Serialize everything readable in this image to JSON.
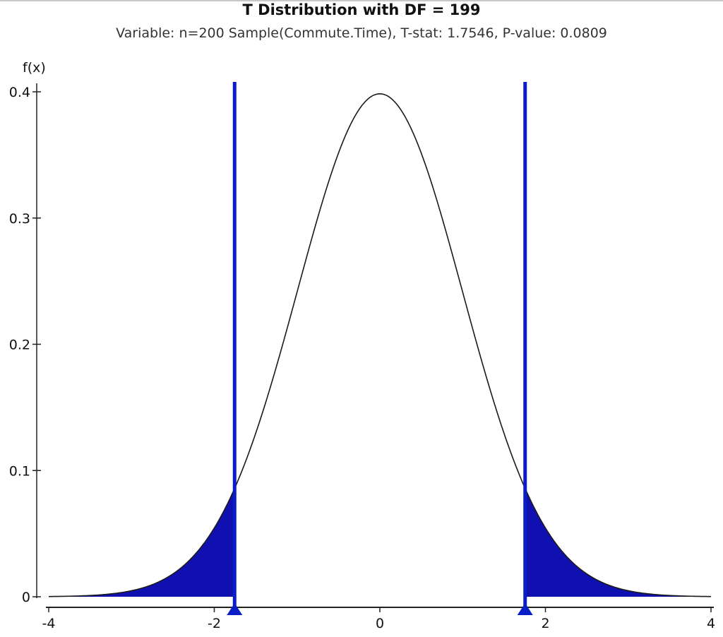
{
  "chart_data": {
    "type": "area",
    "title": "T Distribution with DF = 199",
    "subtitle": "Variable: n=200 Sample(Commute.Time), T-stat: 1.7546, P-value: 0.0809",
    "ylabel": "f(x)",
    "xlabel": "",
    "df": 199,
    "t_stat": 1.7546,
    "p_value": 0.0809,
    "xlim": [
      -4,
      4
    ],
    "ylim": [
      0,
      0.4
    ],
    "x_ticks": [
      -4,
      -2,
      0,
      2,
      4
    ],
    "x_tick_labels": [
      "-4",
      "-2",
      "0",
      "2",
      "4"
    ],
    "y_ticks": [
      0,
      0.1,
      0.2,
      0.3,
      0.4
    ],
    "y_tick_labels": [
      "0",
      "0.1",
      "0.2",
      "0.3",
      "0.4"
    ],
    "critical_lines": [
      -1.7546,
      1.7546
    ],
    "shaded_regions": [
      {
        "from": -4,
        "to": -1.7546
      },
      {
        "from": 1.7546,
        "to": 4
      }
    ],
    "colors": {
      "shade": "#1010b0",
      "line": "#0a1ec8",
      "curve": "#1a1a1a",
      "axis": "#222222"
    }
  }
}
